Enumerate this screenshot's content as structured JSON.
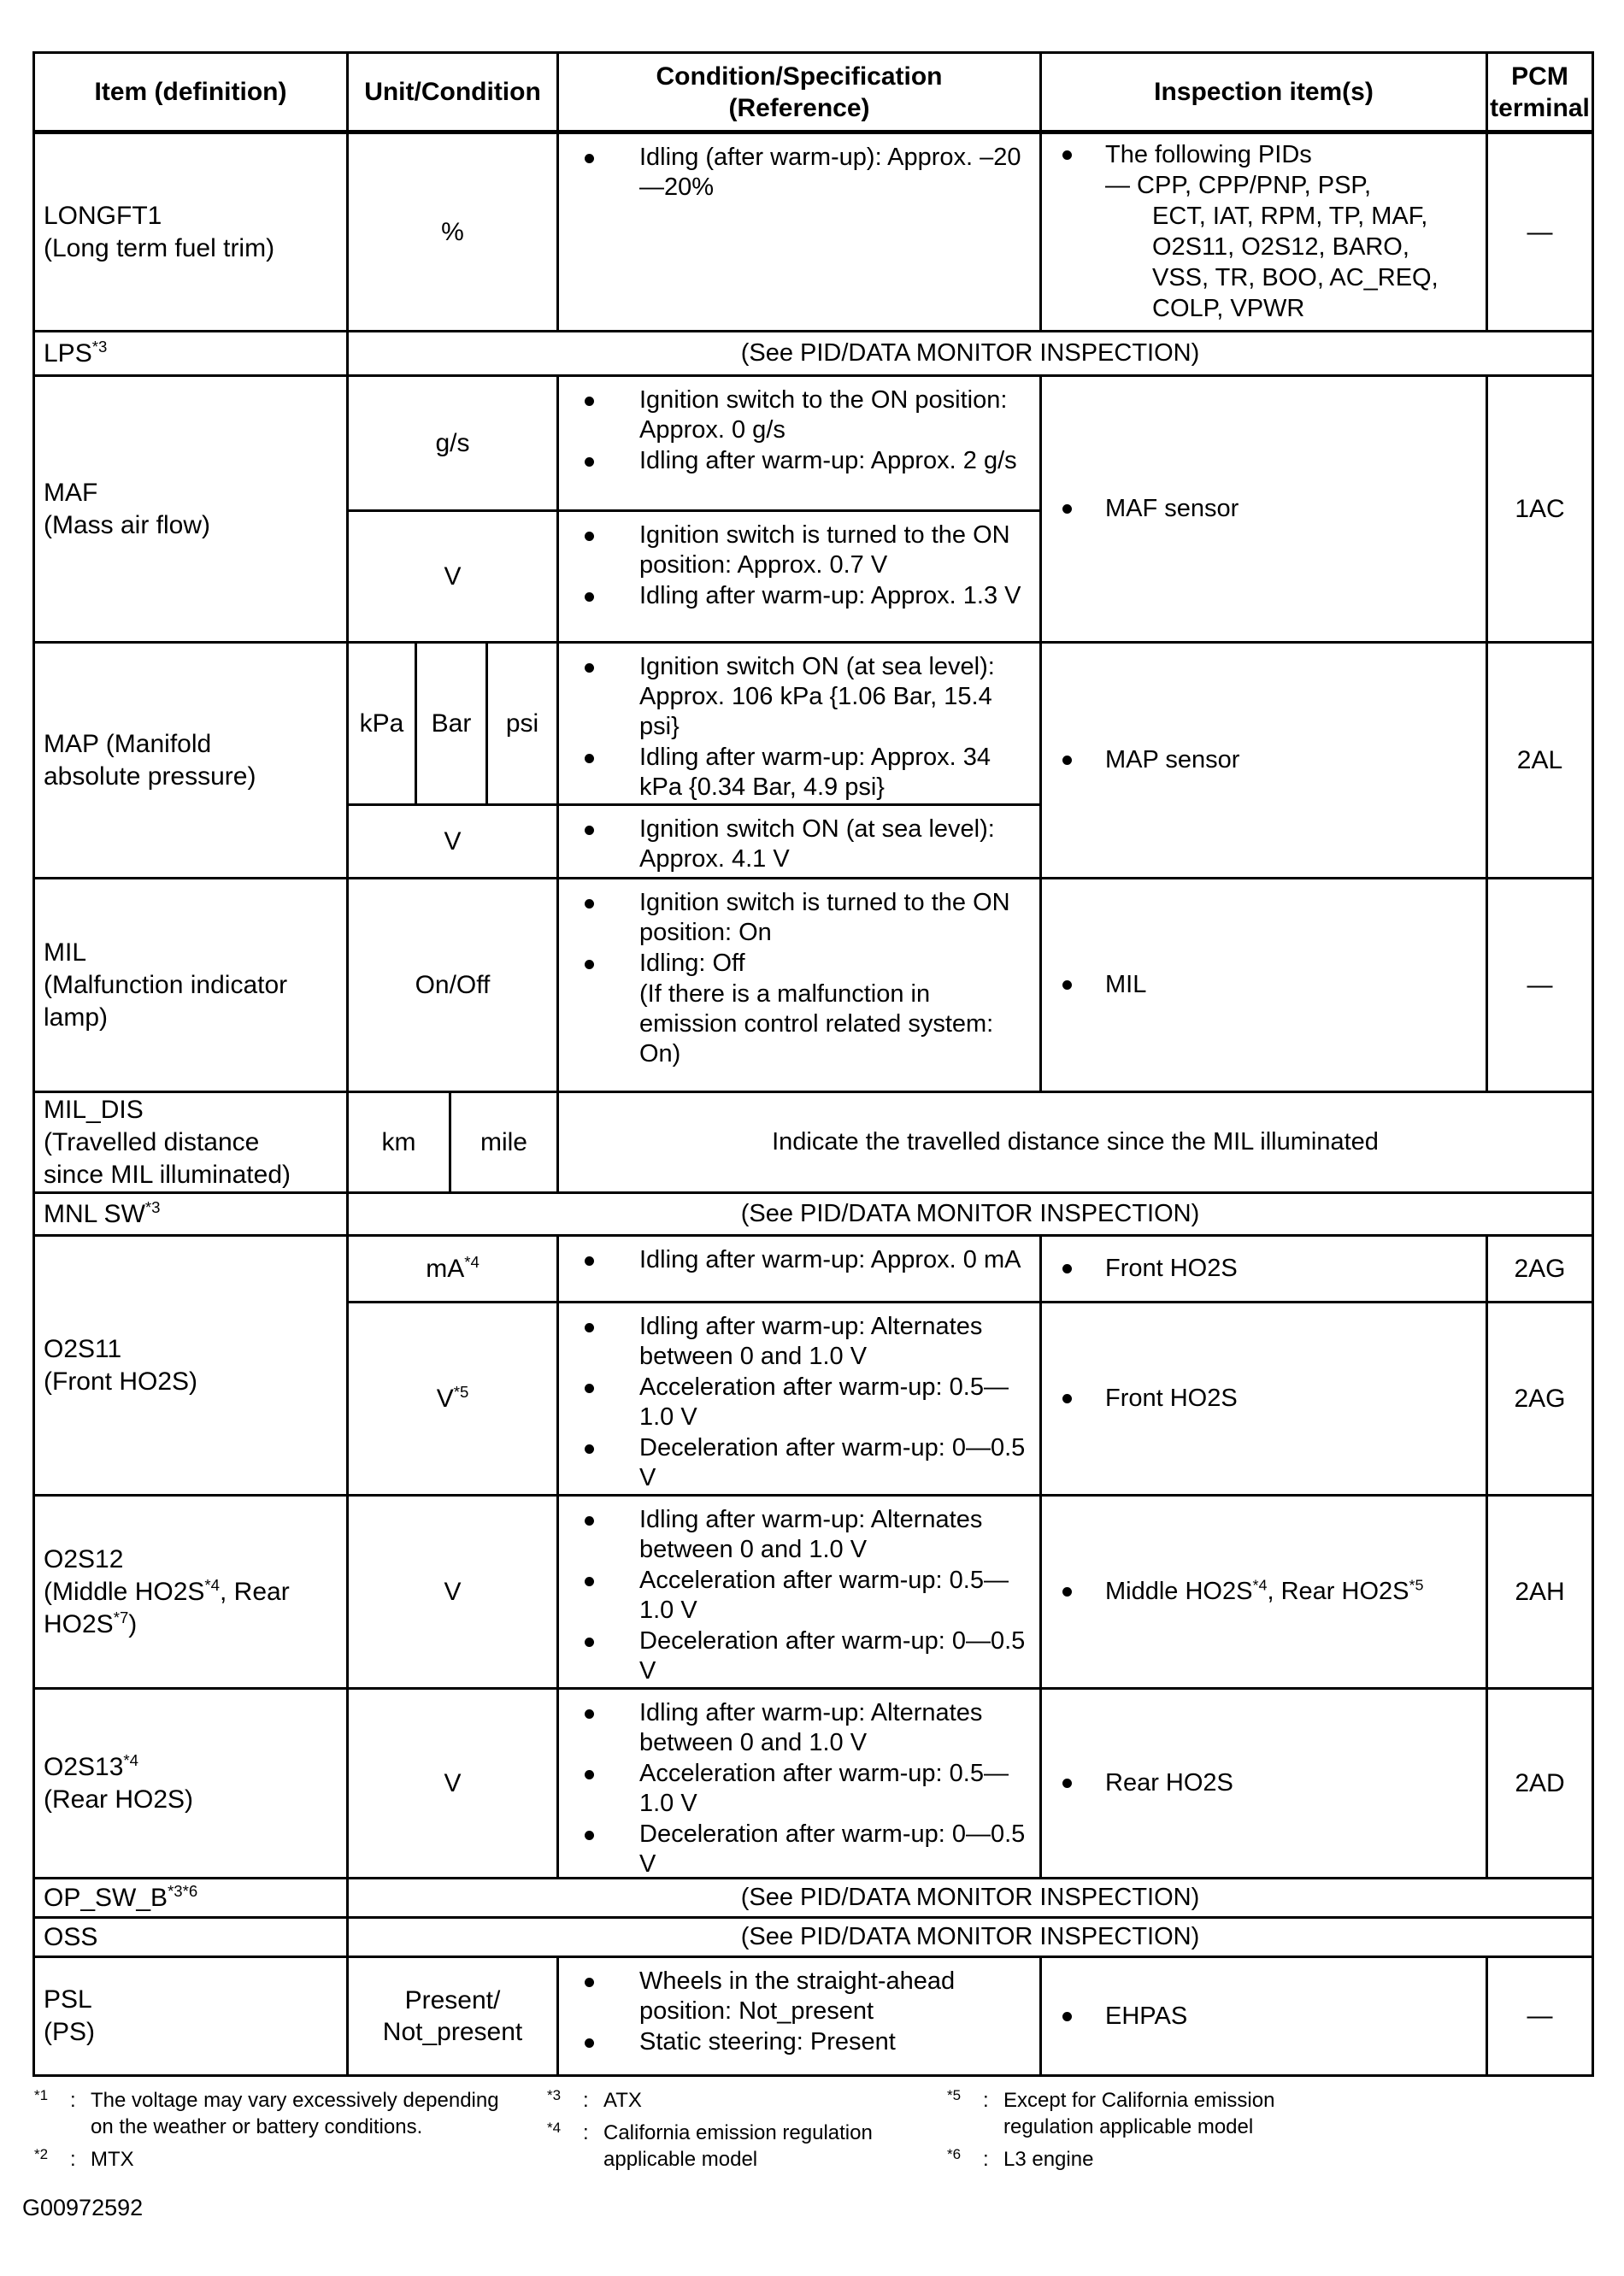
{
  "header": {
    "item": "Item (definition)",
    "unit": "Unit/Condition",
    "cond": [
      "Condition/Specification",
      "(Reference)"
    ],
    "insp": "Inspection item(s)",
    "pcm": [
      "PCM",
      "terminal"
    ]
  },
  "rows": {
    "longft1": {
      "item": [
        "LONGFT1",
        "(Long term fuel trim)"
      ],
      "unit": "%",
      "cond": [
        "Idling (after warm-up): Approx. –20—20%"
      ],
      "insp_lead": "The following PIDs",
      "pids": [
        "— CPP, CPP/PNP, PSP,",
        "ECT, IAT, RPM, TP, MAF,",
        "O2S11, O2S12, BARO,",
        "VSS, TR, BOO, AC_REQ,",
        "COLP, VPWR"
      ],
      "pcm": "—"
    },
    "lps": {
      "item": "LPS^{*3}",
      "merged": "(See PID/DATA MONITOR INSPECTION)"
    },
    "maf": {
      "item": [
        "MAF",
        "(Mass air flow)"
      ],
      "sub1_unit": "g/s",
      "sub1_cond": [
        "Ignition switch to the ON position: Approx. 0 g/s",
        "Idling after warm-up: Approx. 2 g/s"
      ],
      "sub2_unit": "V",
      "sub2_cond": [
        "Ignition switch is turned to the ON position: Approx. 0.7 V",
        "Idling after warm-up: Approx. 1.3 V"
      ],
      "insp": "MAF sensor",
      "pcm": "1AC"
    },
    "map": {
      "item": [
        "MAP (Manifold",
        "absolute pressure)"
      ],
      "units": [
        "kPa",
        "Bar",
        "psi"
      ],
      "sub1_cond": [
        "Ignition switch ON (at sea level): Approx. 106 kPa {1.06 Bar, 15.4 psi}",
        "Idling after warm-up: Approx. 34 kPa {0.34 Bar, 4.9 psi}"
      ],
      "sub2_unit": "V",
      "sub2_cond": [
        "Ignition switch ON (at sea level): Approx. 4.1 V"
      ],
      "insp": "MAP sensor",
      "pcm": "2AL"
    },
    "mil": {
      "item": [
        "MIL",
        "(Malfunction indicator",
        "lamp)"
      ],
      "unit": "On/Off",
      "cond": [
        "Ignition switch is turned to the ON position: On",
        "Idling: Off"
      ],
      "note": "(If there is a malfunction in emission control related system: On)",
      "insp": "MIL",
      "pcm": "—"
    },
    "mil_dis": {
      "item": [
        "MIL_DIS",
        "(Travelled distance",
        "since MIL illuminated)"
      ],
      "unit_km": "km",
      "unit_mile": "mile",
      "merged": "Indicate the travelled distance since the MIL illuminated"
    },
    "mnl_sw": {
      "item": "MNL SW^{*3}",
      "merged": "(See PID/DATA MONITOR INSPECTION)"
    },
    "o2s11": {
      "item": [
        "O2S11",
        "(Front HO2S)"
      ],
      "sub1_unit": "mA^{*4}",
      "sub1_cond": [
        "Idling after warm-up: Approx. 0 mA"
      ],
      "sub1_insp": "Front HO2S",
      "sub1_pcm": "2AG",
      "sub2_unit": "V^{*5}",
      "sub2_cond": [
        "Idling after warm-up: Alternates between 0 and 1.0 V",
        "Acceleration after warm-up: 0.5—1.0 V",
        "Deceleration after warm-up: 0—0.5 V"
      ],
      "sub2_insp": "Front HO2S",
      "sub2_pcm": "2AG"
    },
    "o2s12": {
      "item": [
        "O2S12",
        "(Middle HO2S^{*4}, Rear",
        "HO2S^{*7})"
      ],
      "unit": "V",
      "cond": [
        "Idling after warm-up: Alternates between 0 and 1.0 V",
        "Acceleration after warm-up: 0.5—1.0 V",
        "Deceleration after warm-up: 0—0.5 V"
      ],
      "insp": "Middle HO2S^{*4}, Rear HO2S^{*5}",
      "pcm": "2AH"
    },
    "o2s13": {
      "item": [
        "O2S13^{*4}",
        "(Rear HO2S)"
      ],
      "unit": "V",
      "cond": [
        "Idling after warm-up: Alternates between 0 and 1.0 V",
        "Acceleration after warm-up: 0.5—1.0 V",
        "Deceleration after warm-up: 0—0.5 V"
      ],
      "insp": "Rear HO2S",
      "pcm": "2AD"
    },
    "op_sw_b": {
      "item": "OP_SW_B^{*3*6}",
      "merged": "(See PID/DATA MONITOR INSPECTION)"
    },
    "oss": {
      "item": "OSS",
      "merged": "(See PID/DATA MONITOR INSPECTION)"
    },
    "psl": {
      "item": [
        "PSL",
        "(PS)"
      ],
      "unit": [
        "Present/",
        "Not_present"
      ],
      "cond": [
        "Wheels in the straight-ahead position: Not_present",
        "Static steering: Present"
      ],
      "insp": "EHPAS",
      "pcm": "—"
    }
  },
  "footnotes": {
    "sep": ":",
    "fn1": {
      "m": "*1",
      "t": "The voltage may vary excessively depending on the weather or battery conditions."
    },
    "fn2": {
      "m": "*2",
      "t": "MTX"
    },
    "fn3": {
      "m": "*3",
      "t": "ATX"
    },
    "fn4": {
      "m": "*4",
      "t": "California emission regulation applicable model"
    },
    "fn5": {
      "m": "*5",
      "t": "Except for California emission regulation applicable model"
    },
    "fn6": {
      "m": "*6",
      "t": "L3 engine"
    }
  },
  "figure_id": "G00972592"
}
